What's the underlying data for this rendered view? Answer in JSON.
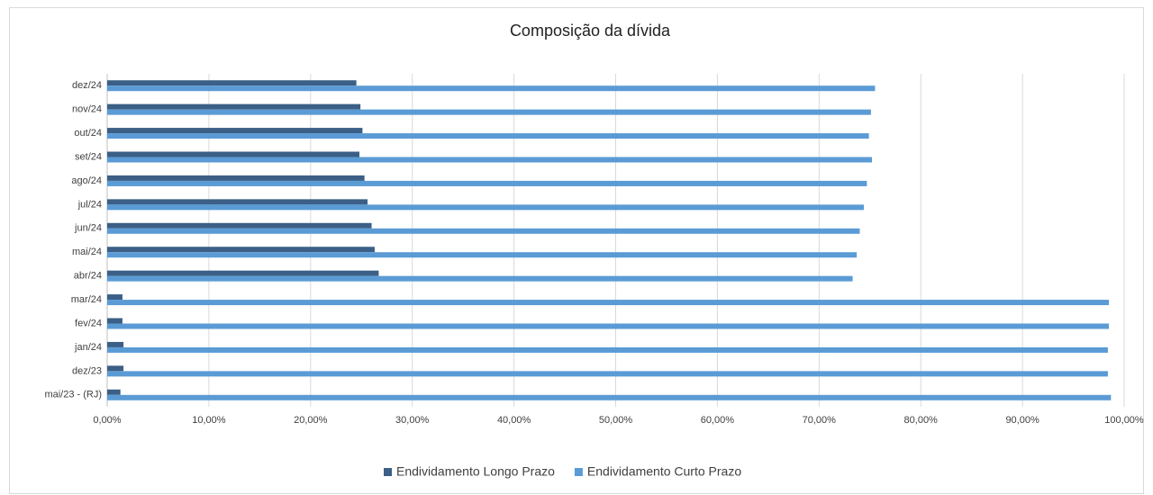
{
  "chart_data": {
    "type": "hbar",
    "title": "Composição da dívida",
    "categories": [
      "mai/23 - (RJ)",
      "dez/23",
      "jan/24",
      "fev/24",
      "mar/24",
      "abr/24",
      "mai/24",
      "jun/24",
      "jul/24",
      "ago/24",
      "set/24",
      "out/24",
      "nov/24",
      "dez/24"
    ],
    "series": [
      {
        "name": "Endividamento Longo Prazo",
        "color": "#3b5f86",
        "values": [
          1.3,
          1.6,
          1.6,
          1.5,
          1.5,
          26.7,
          26.3,
          26.0,
          25.6,
          25.3,
          24.8,
          25.1,
          24.9,
          24.5
        ]
      },
      {
        "name": "Endividamento Curto Prazo",
        "color": "#5b9bd5",
        "values": [
          98.7,
          98.4,
          98.4,
          98.5,
          98.5,
          73.3,
          73.7,
          74.0,
          74.4,
          74.7,
          75.2,
          74.9,
          75.1,
          75.5
        ]
      }
    ],
    "xlim": [
      0,
      100
    ],
    "xticks": [
      {
        "value": 0,
        "label": "0,00%"
      },
      {
        "value": 10,
        "label": "10,00%"
      },
      {
        "value": 20,
        "label": "20,00%"
      },
      {
        "value": 30,
        "label": "30,00%"
      },
      {
        "value": 40,
        "label": "40,00%"
      },
      {
        "value": 50,
        "label": "50,00%"
      },
      {
        "value": 60,
        "label": "60,00%"
      },
      {
        "value": 70,
        "label": "70,00%"
      },
      {
        "value": 80,
        "label": "80,00%"
      },
      {
        "value": 90,
        "label": "90,00%"
      },
      {
        "value": 100,
        "label": "100,00%"
      }
    ],
    "grid": true,
    "legend": "bottom"
  }
}
